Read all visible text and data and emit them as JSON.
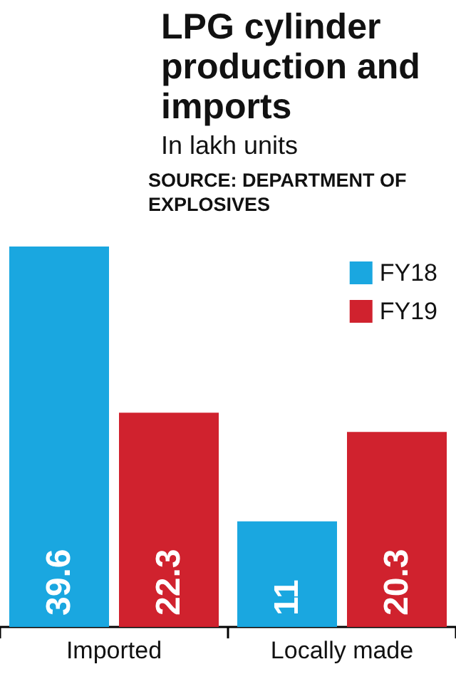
{
  "chart_data": {
    "type": "bar",
    "title": "LPG cylinder production and imports",
    "subtitle": "In lakh units",
    "annotations": [
      "SOURCE: DEPARTMENT OF EXPLOSIVES"
    ],
    "categories": [
      "Imported",
      "Locally made"
    ],
    "series": [
      {
        "name": "FY18",
        "color": "#1aa7e0",
        "values": [
          39.6,
          11
        ]
      },
      {
        "name": "FY19",
        "color": "#d0222e",
        "values": [
          22.3,
          20.3
        ]
      }
    ],
    "data_labels": true,
    "legend": "top right"
  }
}
